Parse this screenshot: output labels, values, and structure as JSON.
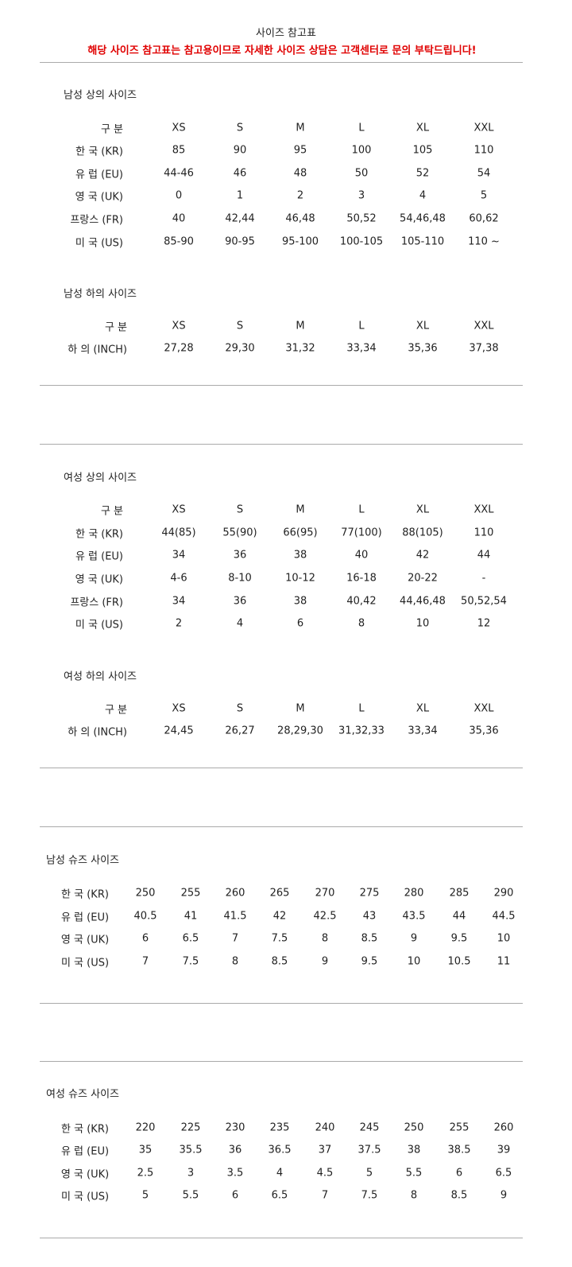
{
  "title": "사이즈 참고표",
  "notice": "해당 사이즈 참고표는 참고용이므로 자세한 사이즈 상담은 고객센터로 문의 부탁드립니다!",
  "notice_color": "#e00000",
  "sections": [
    {
      "heading": "남성 상의 사이즈",
      "header": [
        "구 분",
        "XS",
        "S",
        "M",
        "L",
        "XL",
        "XXL"
      ],
      "rows": [
        [
          "한 국 (KR)",
          "85",
          "90",
          "95",
          "100",
          "105",
          "110"
        ],
        [
          "유 럽 (EU)",
          "44-46",
          "46",
          "48",
          "50",
          "52",
          "54"
        ],
        [
          "영 국 (UK)",
          "0",
          "1",
          "2",
          "3",
          "4",
          "5"
        ],
        [
          "프랑스 (FR)",
          "40",
          "42,44",
          "46,48",
          "50,52",
          "54,46,48",
          "60,62"
        ],
        [
          "미 국 (US)",
          "85-90",
          "90-95",
          "95-100",
          "100-105",
          "105-110",
          "110 ~"
        ]
      ]
    },
    {
      "heading": "남성 하의 사이즈",
      "header": [
        "구 분",
        "XS",
        "S",
        "M",
        "L",
        "XL",
        "XXL"
      ],
      "rows": [
        [
          "하 의 (INCH)",
          "27,28",
          "29,30",
          "31,32",
          "33,34",
          "35,36",
          "37,38"
        ]
      ]
    },
    {
      "heading": "여성 상의 사이즈",
      "header": [
        "구 분",
        "XS",
        "S",
        "M",
        "L",
        "XL",
        "XXL"
      ],
      "rows": [
        [
          "한 국 (KR)",
          "44(85)",
          "55(90)",
          "66(95)",
          "77(100)",
          "88(105)",
          "110"
        ],
        [
          "유 럽 (EU)",
          "34",
          "36",
          "38",
          "40",
          "42",
          "44"
        ],
        [
          "영 국 (UK)",
          "4-6",
          "8-10",
          "10-12",
          "16-18",
          "20-22",
          "-"
        ],
        [
          "프랑스 (FR)",
          "34",
          "36",
          "38",
          "40,42",
          "44,46,48",
          "50,52,54"
        ],
        [
          "미 국 (US)",
          "2",
          "4",
          "6",
          "8",
          "10",
          "12"
        ]
      ]
    },
    {
      "heading": "여성 하의 사이즈",
      "header": [
        "구 분",
        "XS",
        "S",
        "M",
        "L",
        "XL",
        "XXL"
      ],
      "rows": [
        [
          "하 의 (INCH)",
          "24,45",
          "26,27",
          "28,29,30",
          "31,32,33",
          "33,34",
          "35,36"
        ]
      ]
    },
    {
      "heading": "남성 슈즈 사이즈",
      "header": null,
      "rows": [
        [
          "한 국 (KR)",
          "250",
          "255",
          "260",
          "265",
          "270",
          "275",
          "280",
          "285",
          "290"
        ],
        [
          "유 럽 (EU)",
          "40.5",
          "41",
          "41.5",
          "42",
          "42.5",
          "43",
          "43.5",
          "44",
          "44.5"
        ],
        [
          "영 국 (UK)",
          "6",
          "6.5",
          "7",
          "7.5",
          "8",
          "8.5",
          "9",
          "9.5",
          "10"
        ],
        [
          "미 국 (US)",
          "7",
          "7.5",
          "8",
          "8.5",
          "9",
          "9.5",
          "10",
          "10.5",
          "11"
        ]
      ]
    },
    {
      "heading": "여성 슈즈 사이즈",
      "header": null,
      "rows": [
        [
          "한 국 (KR)",
          "220",
          "225",
          "230",
          "235",
          "240",
          "245",
          "250",
          "255",
          "260"
        ],
        [
          "유 럽 (EU)",
          "35",
          "35.5",
          "36",
          "36.5",
          "37",
          "37.5",
          "38",
          "38.5",
          "39"
        ],
        [
          "영 국 (UK)",
          "2.5",
          "3",
          "3.5",
          "4",
          "4.5",
          "5",
          "5.5",
          "6",
          "6.5"
        ],
        [
          "미 국 (US)",
          "5",
          "5.5",
          "6",
          "6.5",
          "7",
          "7.5",
          "8",
          "8.5",
          "9"
        ]
      ]
    }
  ]
}
